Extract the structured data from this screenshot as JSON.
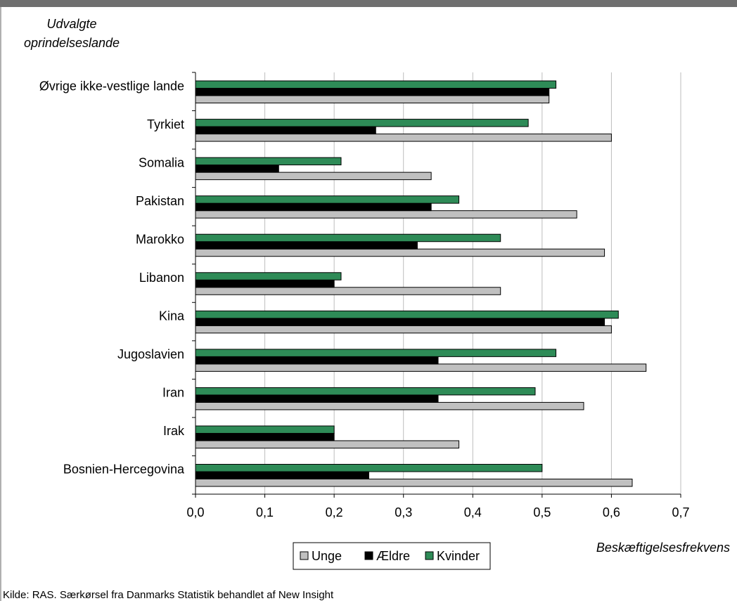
{
  "chart_data": {
    "type": "bar",
    "orientation": "horizontal",
    "ylabel": "Udvalgte oprindelseslande",
    "ylabel_lines": [
      "Udvalgte",
      "oprindelseslande"
    ],
    "xlabel": "Beskæftigelsesfrekvens",
    "xlim": [
      0,
      0.7
    ],
    "xticks": [
      "0,0",
      "0,1",
      "0,2",
      "0,3",
      "0,4",
      "0,5",
      "0,6",
      "0,7"
    ],
    "grid": true,
    "legend_position": "bottom",
    "categories": [
      "Øvrige ikke-vestlige lande",
      "Tyrkiet",
      "Somalia",
      "Pakistan",
      "Marokko",
      "Libanon",
      "Kina",
      "Jugoslavien",
      "Iran",
      "Irak",
      "Bosnien-Hercegovina"
    ],
    "series": [
      {
        "name": "Unge",
        "color": "#c0c0c0",
        "values": [
          0.51,
          0.6,
          0.34,
          0.55,
          0.59,
          0.44,
          0.6,
          0.65,
          0.56,
          0.38,
          0.63
        ]
      },
      {
        "name": "Ældre",
        "color": "#000000",
        "values": [
          0.51,
          0.26,
          0.12,
          0.34,
          0.32,
          0.2,
          0.59,
          0.35,
          0.35,
          0.2,
          0.25
        ]
      },
      {
        "name": "Kvinder",
        "color": "#2e8b57",
        "values": [
          0.52,
          0.48,
          0.21,
          0.38,
          0.44,
          0.21,
          0.61,
          0.52,
          0.49,
          0.2,
          0.5
        ]
      }
    ]
  },
  "source": "Kilde: RAS. Særkørsel fra Danmarks Statistik behandlet af New Insight"
}
